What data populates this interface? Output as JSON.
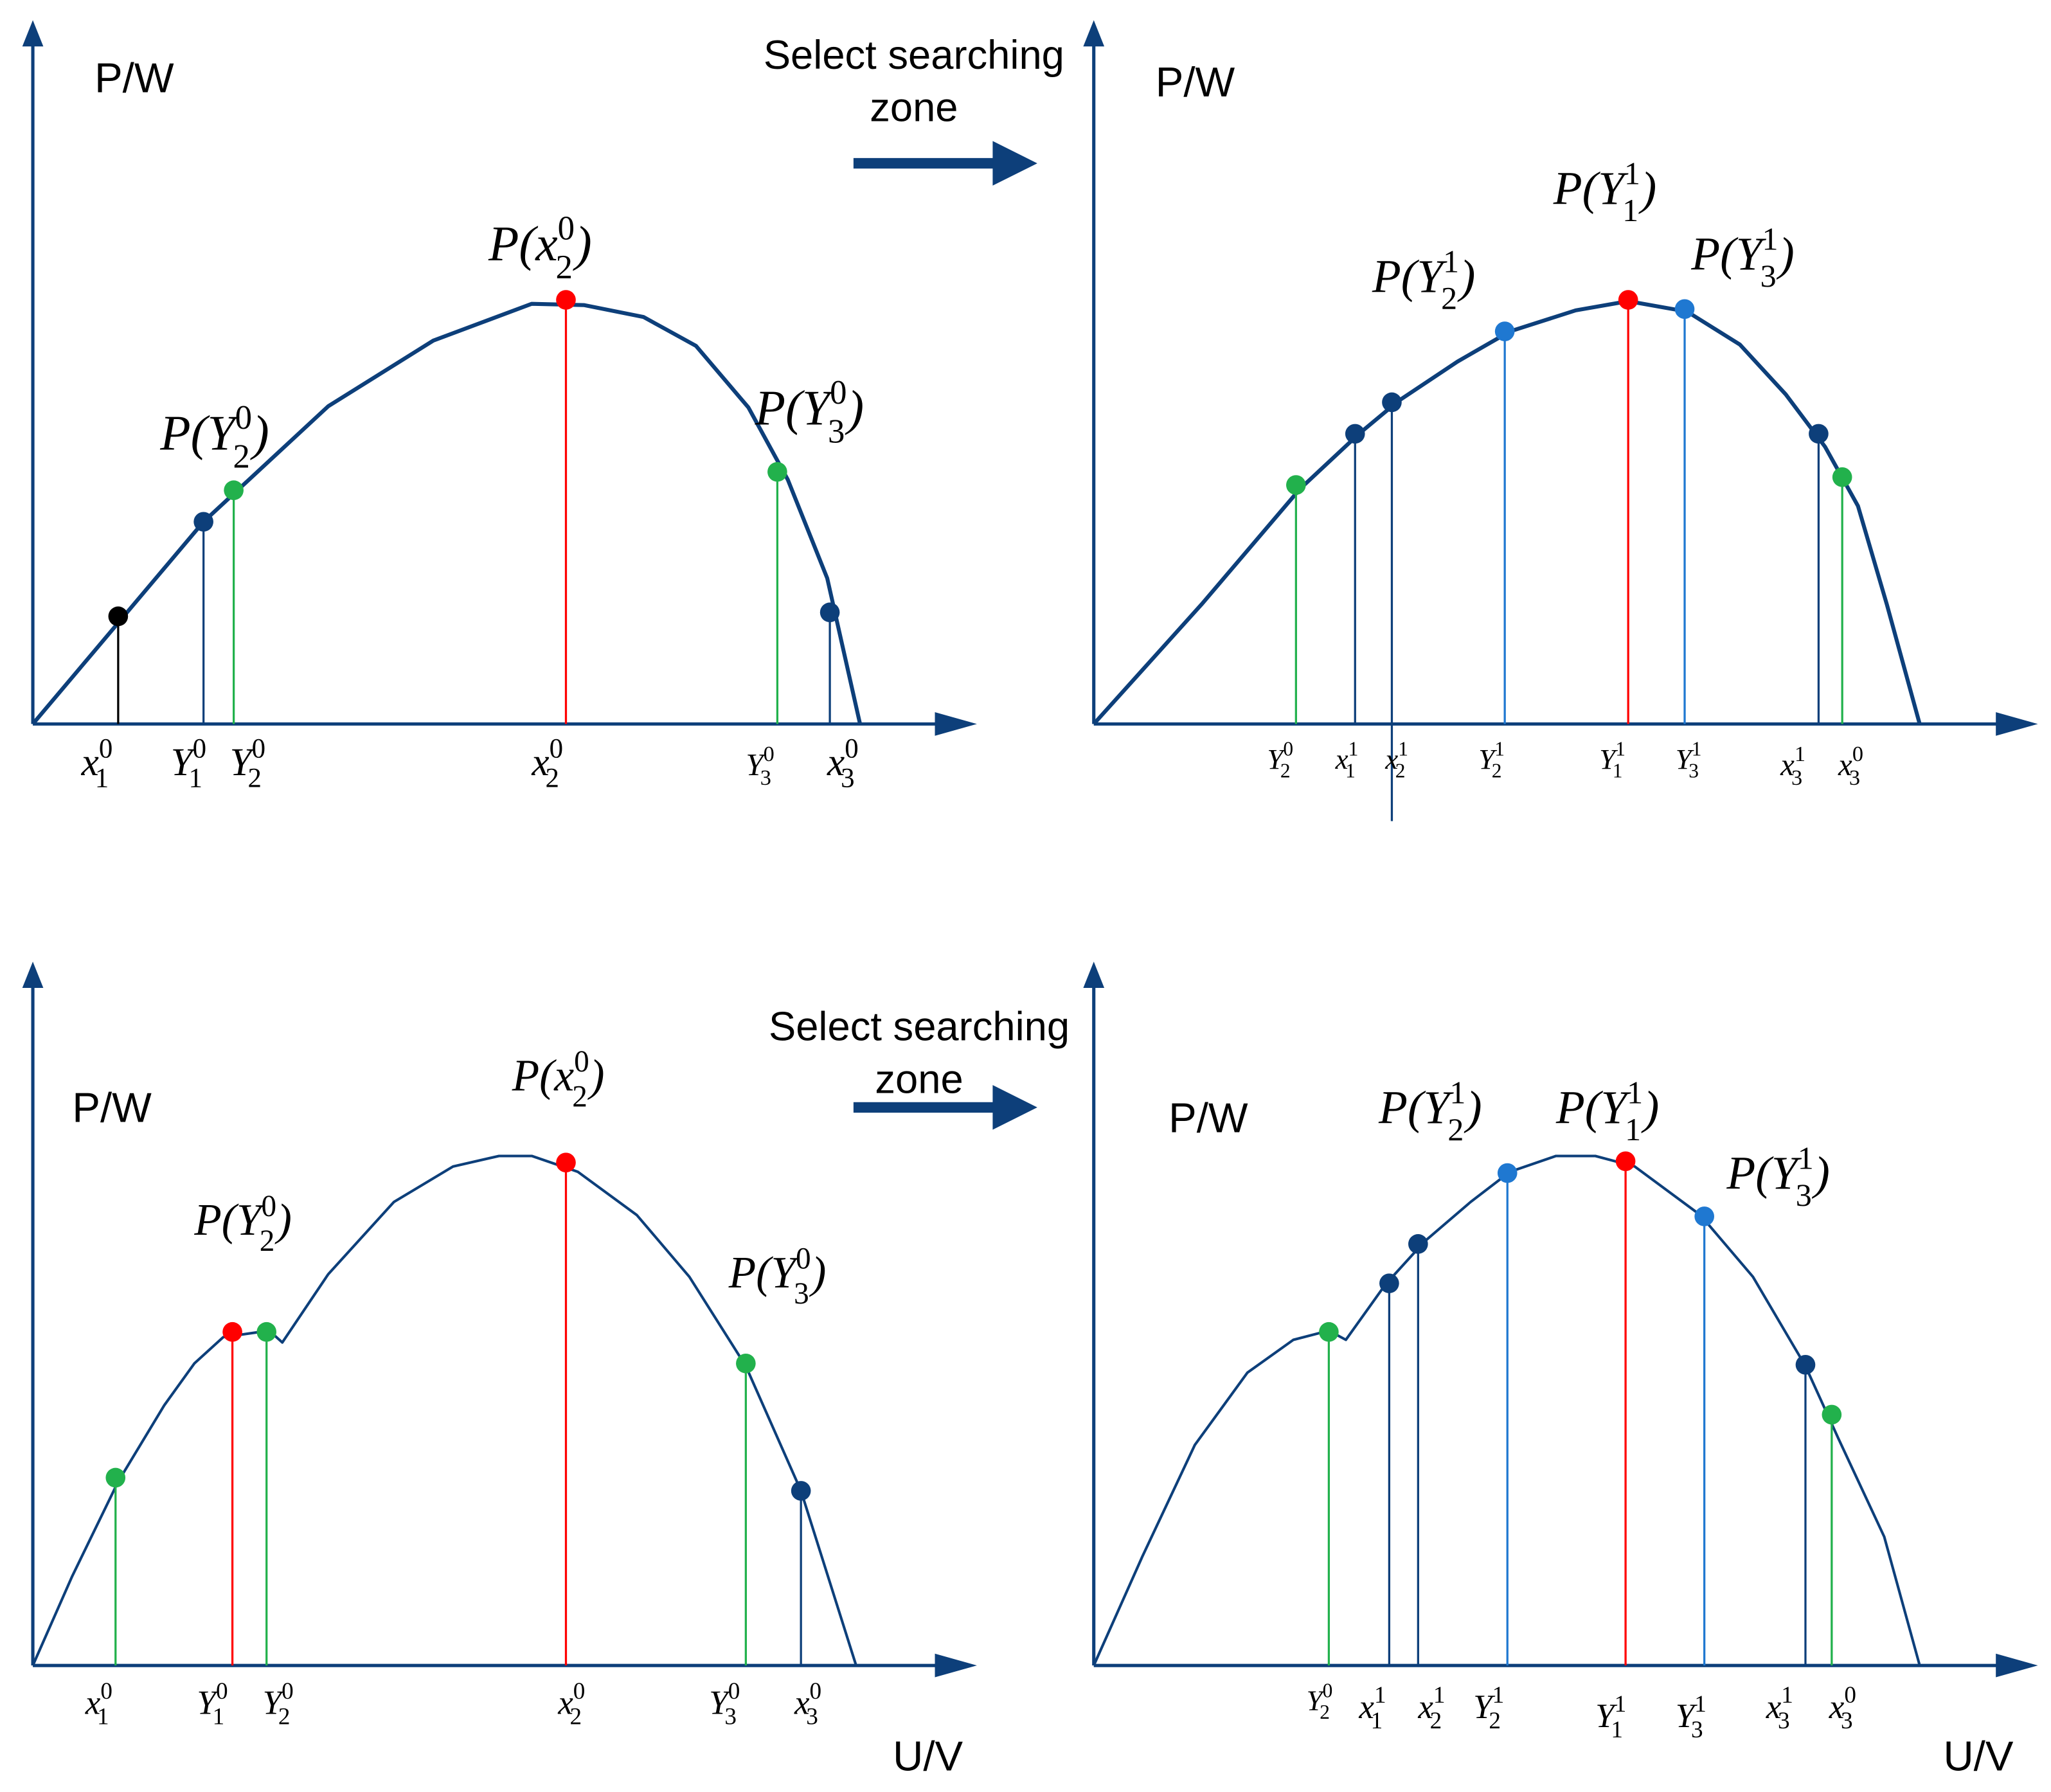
{
  "colors": {
    "curve": "#0d3f7a",
    "axis": "#0d3f7a",
    "red": "#ff0000",
    "green": "#22b14c",
    "dark_blue": "#0d3f7a",
    "light_blue": "#1f78d1",
    "black": "#000000"
  },
  "arrow_label": "Select searching zone",
  "panels": [
    {
      "id": "top-left",
      "y_axis_label": "P/W",
      "x_axis_label": "",
      "curve": "single-peak",
      "points": [
        {
          "name": "x1-0",
          "color": "black",
          "label": [
            "x",
            "1",
            "0"
          ]
        },
        {
          "name": "Y1-0",
          "color": "dark_blue",
          "label": [
            "Y",
            "1",
            "0"
          ]
        },
        {
          "name": "Y2-0",
          "color": "green",
          "label": [
            "Y",
            "2",
            "0"
          ],
          "p_label": [
            "P(Y",
            "2",
            "0",
            ")"
          ]
        },
        {
          "name": "x2-0",
          "color": "red",
          "label": [
            "x",
            "2",
            "0"
          ],
          "p_label": [
            "P(x",
            "2",
            "0",
            ")"
          ]
        },
        {
          "name": "Y3-0",
          "color": "green",
          "label": [
            "Y",
            "3",
            "0"
          ],
          "p_label": [
            "P(Y",
            "3",
            "0",
            ")"
          ]
        },
        {
          "name": "x3-0",
          "color": "dark_blue",
          "label": [
            "x",
            "3",
            "0"
          ]
        }
      ]
    },
    {
      "id": "top-right",
      "y_axis_label": "P/W",
      "x_axis_label": "",
      "curve": "single-peak",
      "points": [
        {
          "name": "Y2-0",
          "color": "green",
          "label": [
            "Y",
            "2",
            "0"
          ]
        },
        {
          "name": "x1-1",
          "color": "dark_blue",
          "label": [
            "x",
            "1",
            "1"
          ]
        },
        {
          "name": "x2-1",
          "color": "dark_blue",
          "label": [
            "x",
            "2",
            "1"
          ]
        },
        {
          "name": "Y2-1",
          "color": "light_blue",
          "label": [
            "Y",
            "2",
            "1"
          ],
          "p_label": [
            "P(Y",
            "2",
            "1",
            ")"
          ]
        },
        {
          "name": "Y1-1",
          "color": "red",
          "label": [
            "Y",
            "1",
            "1"
          ],
          "p_label": [
            "P(Y",
            "1",
            "1",
            ")"
          ]
        },
        {
          "name": "Y3-1",
          "color": "light_blue",
          "label": [
            "Y",
            "3",
            "1"
          ],
          "p_label": [
            "P(Y",
            "3",
            "1",
            ")"
          ]
        },
        {
          "name": "x3-1",
          "color": "dark_blue",
          "label": [
            "x",
            "3",
            "1"
          ]
        },
        {
          "name": "x3-0",
          "color": "green",
          "label": [
            "x",
            "3",
            "0"
          ]
        }
      ]
    },
    {
      "id": "bottom-left",
      "y_axis_label": "P/W",
      "x_axis_label": "U/V",
      "curve": "two-peak",
      "points": [
        {
          "name": "x1-0",
          "color": "green",
          "label": [
            "x",
            "1",
            "0"
          ]
        },
        {
          "name": "Y1-0",
          "color": "red",
          "label": [
            "Y",
            "1",
            "0"
          ]
        },
        {
          "name": "Y2-0",
          "color": "green",
          "label": [
            "Y",
            "2",
            "0"
          ],
          "p_label": [
            "P(Y",
            "2",
            "0",
            ")"
          ]
        },
        {
          "name": "x2-0",
          "color": "red",
          "label": [
            "x",
            "2",
            "0"
          ],
          "p_label": [
            "P(x",
            "2",
            "0",
            ")"
          ]
        },
        {
          "name": "Y3-0",
          "color": "green",
          "label": [
            "Y",
            "3",
            "0"
          ],
          "p_label": [
            "P(Y",
            "3",
            "0",
            ")"
          ]
        },
        {
          "name": "x3-0",
          "color": "dark_blue",
          "label": [
            "x",
            "3",
            "0"
          ]
        }
      ]
    },
    {
      "id": "bottom-right",
      "y_axis_label": "P/W",
      "x_axis_label": "U/V",
      "curve": "two-peak",
      "points": [
        {
          "name": "Y2-0",
          "color": "green",
          "label": [
            "Y",
            "2",
            "0"
          ]
        },
        {
          "name": "x1-1",
          "color": "dark_blue",
          "label": [
            "x",
            "1",
            "1"
          ]
        },
        {
          "name": "x2-1",
          "color": "dark_blue",
          "label": [
            "x",
            "2",
            "1"
          ]
        },
        {
          "name": "Y2-1",
          "color": "light_blue",
          "label": [
            "Y",
            "2",
            "1"
          ],
          "p_label": [
            "P(Y",
            "2",
            "1",
            ")"
          ]
        },
        {
          "name": "Y1-1",
          "color": "red",
          "label": [
            "Y",
            "1",
            "1"
          ],
          "p_label": [
            "P(Y",
            "1",
            "1",
            ")"
          ]
        },
        {
          "name": "Y3-1",
          "color": "light_blue",
          "label": [
            "Y",
            "3",
            "1"
          ],
          "p_label": [
            "P(Y",
            "3",
            "1",
            ")"
          ]
        },
        {
          "name": "x3-1",
          "color": "dark_blue",
          "label": [
            "x",
            "3",
            "1"
          ]
        },
        {
          "name": "x3-0",
          "color": "green",
          "label": [
            "x",
            "3",
            "0"
          ]
        }
      ]
    }
  ]
}
